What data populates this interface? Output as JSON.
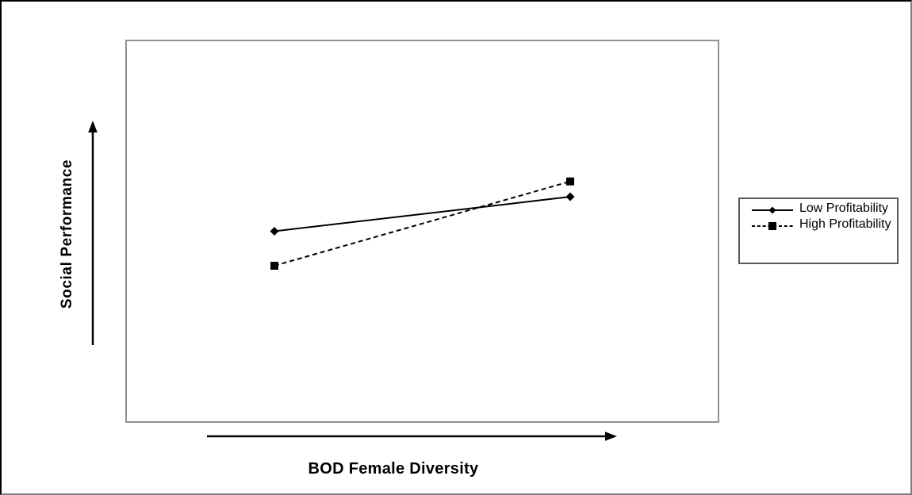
{
  "figure": {
    "background": "#ffffff",
    "outer_border_color": "#000000",
    "outer_border_soft_color": "#7f7f7f",
    "plot_border_color": "#909090",
    "legend_border_color": "#595959",
    "line_color": "#000000",
    "text_color": "#000000"
  },
  "chart_data": {
    "type": "line",
    "title": "",
    "xlabel": "BOD Female Diversity",
    "ylabel": "Social Performance",
    "x_axis": {
      "style": "plain arrow, no ticks, increases left to right",
      "ticks": []
    },
    "y_axis": {
      "style": "plain arrow, no ticks, increases bottom to top",
      "ticks": []
    },
    "grid": false,
    "legend_position": "outside-right",
    "xlim": [
      0,
      1
    ],
    "ylim": [
      0,
      1
    ],
    "x": [
      0,
      1
    ],
    "series": [
      {
        "name": "Low Profitability",
        "line_style": "solid",
        "marker": "diamond",
        "color": "#000000",
        "values": [
          0.5,
          0.59
        ]
      },
      {
        "name": "High Profitability",
        "line_style": "dashed",
        "marker": "square",
        "color": "#000000",
        "values": [
          0.41,
          0.63
        ]
      }
    ]
  }
}
